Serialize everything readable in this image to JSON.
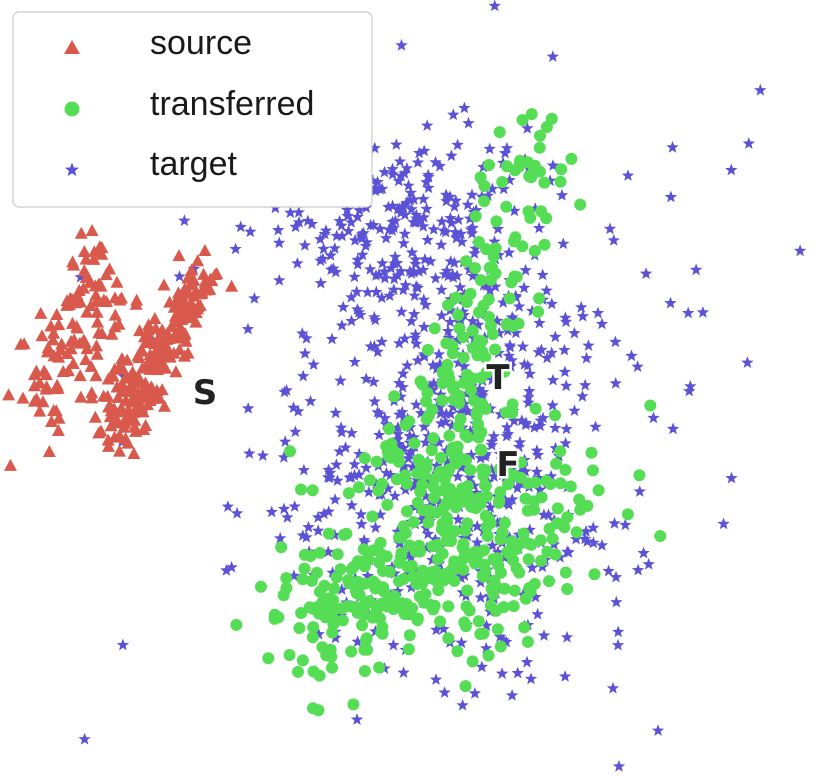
{
  "chart_data": {
    "type": "scatter",
    "title": "",
    "xlabel": "",
    "ylabel": "",
    "xlim": [
      -60,
      60
    ],
    "ylim": [
      -60,
      60
    ],
    "grid": false,
    "axes_visible": false,
    "legend": {
      "placement": "top-left",
      "entries": [
        "source",
        "transferred",
        "target"
      ]
    },
    "series": [
      {
        "name": "source",
        "marker": "triangle",
        "color": "#d9594c",
        "clusters": [
          {
            "shape": "band",
            "from": [
              -31,
              20
            ],
            "to": [
              -45,
              -8
            ],
            "count": 160,
            "spread": 1.6
          },
          {
            "shape": "band",
            "from": [
              -39,
              8
            ],
            "to": [
              -45,
              -5
            ],
            "count": 50,
            "spread": 2.5
          },
          {
            "shape": "band",
            "from": [
              -47,
              20
            ],
            "to": [
              -58,
              -5
            ],
            "count": 95,
            "spread": 2.5
          },
          {
            "shape": "blob",
            "center": [
              -45,
              13
            ],
            "sd": [
              4,
              8
            ],
            "count": 22
          }
        ]
      },
      {
        "name": "transferred",
        "marker": "circle",
        "color": "#55dd55",
        "clusters": [
          {
            "shape": "band",
            "from": [
              18,
              38
            ],
            "to": [
              3,
              -10
            ],
            "count": 120,
            "spread": 3.5
          },
          {
            "shape": "blob",
            "center": [
              7,
              -20
            ],
            "sd": [
              9,
              9
            ],
            "count": 260
          },
          {
            "shape": "blob",
            "center": [
              -3,
              -32
            ],
            "sd": [
              9,
              6
            ],
            "count": 130
          },
          {
            "shape": "blob",
            "center": [
              -12,
              -38
            ],
            "sd": [
              6,
              6
            ],
            "count": 40
          }
        ]
      },
      {
        "name": "target",
        "marker": "star",
        "color": "#5b52d6",
        "clusters": [
          {
            "shape": "blob",
            "center": [
              -3,
              26
            ],
            "sd": [
              10,
              9
            ],
            "count": 240
          },
          {
            "shape": "blob",
            "center": [
              3,
              -20
            ],
            "sd": [
              11,
              12
            ],
            "count": 320
          },
          {
            "shape": "blob",
            "center": [
              8,
              5
            ],
            "sd": [
              12,
              13
            ],
            "count": 170
          },
          {
            "shape": "blob",
            "center": [
              1,
              0
            ],
            "sd": [
              25,
              26
            ],
            "count": 150
          }
        ]
      }
    ],
    "annotations": [
      {
        "text": "S",
        "x": -41,
        "y": 3
      },
      {
        "text": "T",
        "x": 0,
        "y": 6
      },
      {
        "text": "F",
        "x": 1,
        "y": -4
      }
    ]
  }
}
